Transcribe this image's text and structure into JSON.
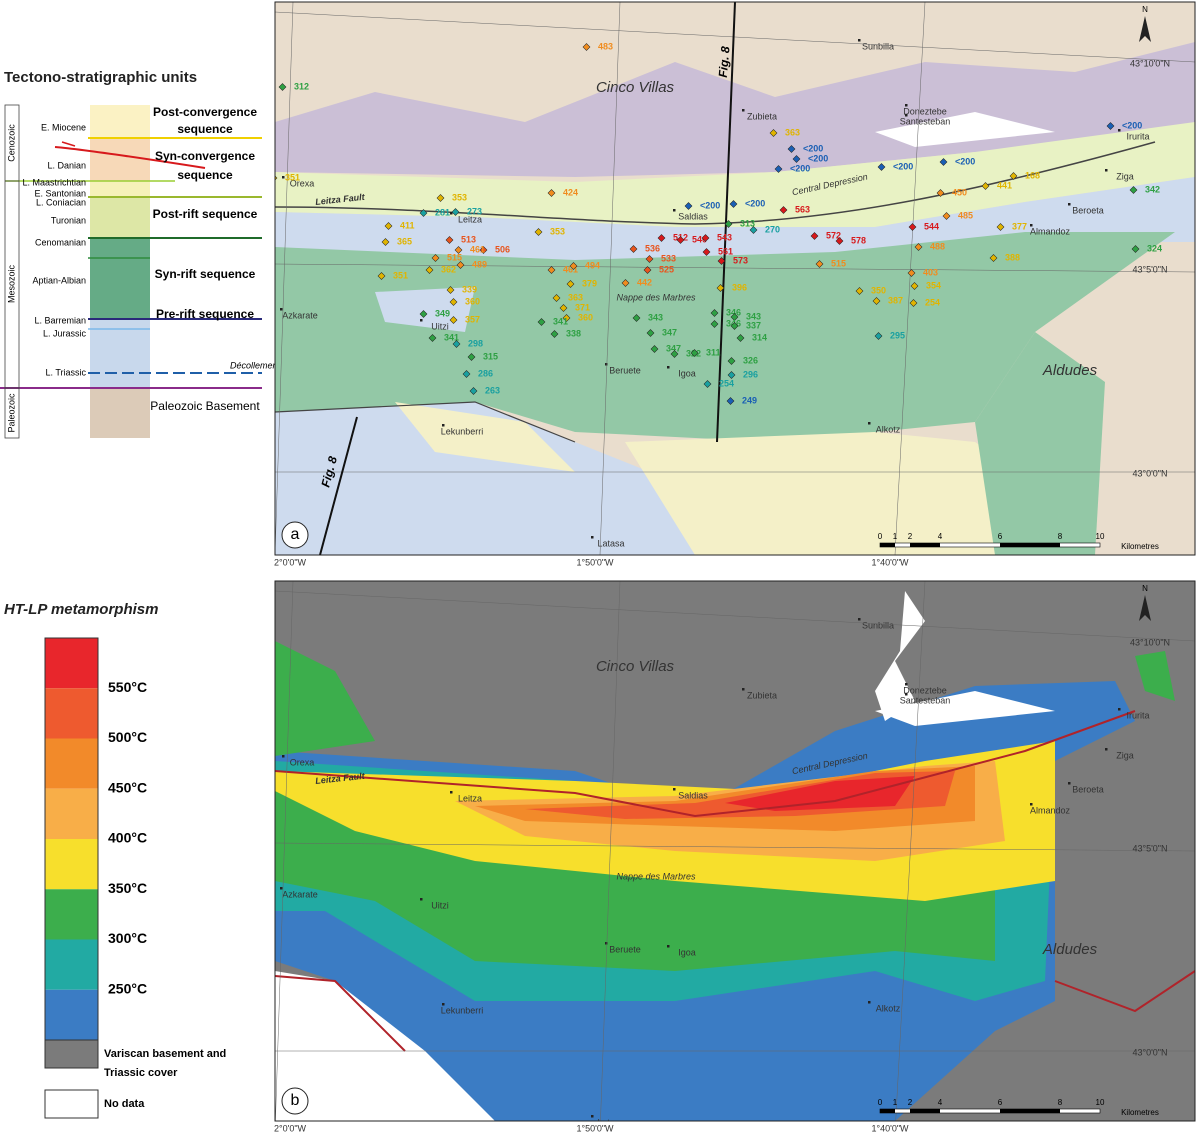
{
  "legend_a": {
    "title": "Tectono-stratigraphic units",
    "eras": [
      "Cenozoic",
      "Mesozoic",
      "Paleozoic"
    ],
    "ages": [
      "E. Miocene",
      "L. Danian",
      "L. Maastrichtian",
      "E. Santonian",
      "L. Coniacian",
      "Turonian",
      "Cenomanian",
      "Aptian-Albian",
      "L. Barremian",
      "L. Jurassic",
      "L. Triassic"
    ],
    "sequences": [
      [
        "Post-convergence",
        "sequence"
      ],
      [
        "Syn-convergence",
        "sequence"
      ],
      [
        "Post-rift sequence"
      ],
      [
        "Syn-rift sequence"
      ],
      [
        "Pre-rift sequence"
      ],
      [
        "Paleozoic Basement"
      ]
    ],
    "decollement": "Décollement"
  },
  "legend_b": {
    "title": "HT-LP metamorphism",
    "temperatures": [
      "550°C",
      "500°C",
      "450°C",
      "400°C",
      "350°C",
      "300°C",
      "250°C"
    ],
    "colors": [
      "#e8262c",
      "#ee5a2f",
      "#f28a2a",
      "#f8ae48",
      "#f7df2c",
      "#3cae4c",
      "#22aaa3",
      "#3b7cc4"
    ],
    "basement": [
      "Variscan basement and",
      "Triassic cover"
    ],
    "basement_color": "#7b7b7b",
    "nodata": "No data"
  },
  "map_a": {
    "panel": "a",
    "north": "N",
    "section": [
      "Fig. 8",
      "Fig. 8"
    ],
    "places": [
      "Sunbilla",
      "Cinco Villas",
      "Zubieta",
      "Doneztebe",
      "Santesteban",
      "Irurita",
      "Orexa",
      "Leitza Fault",
      "Leitza",
      "Saldias",
      "Central Depression",
      "Ziga",
      "Beroeta",
      "Almandoz",
      "Nappe des Marbres",
      "Azkarate",
      "Uitzi",
      "Beruete",
      "Igoa",
      "Aldudes",
      "Lekunberri",
      "Alkotz",
      "Latasa"
    ],
    "samples": [
      {
        "label": "483",
        "color": "#f08c1e"
      },
      {
        "label": "312",
        "color": "#2ea043"
      },
      {
        "label": "363",
        "color": "#e0b400"
      },
      {
        "label": "<200",
        "color": "#1a5fb4"
      },
      {
        "label": "<200",
        "color": "#1a5fb4"
      },
      {
        "label": "<200",
        "color": "#1a5fb4"
      },
      {
        "label": "<200",
        "color": "#1a5fb4"
      },
      {
        "label": "<200",
        "color": "#1a5fb4"
      },
      {
        "label": "<200",
        "color": "#1a5fb4"
      },
      {
        "label": "<200",
        "color": "#1a5fb4"
      },
      {
        "label": "<200",
        "color": "#1a5fb4"
      },
      {
        "label": "351",
        "color": "#e0b400"
      },
      {
        "label": "424",
        "color": "#f08c1e"
      },
      {
        "label": "353",
        "color": "#e0b400"
      },
      {
        "label": "281",
        "color": "#1aa0a0"
      },
      {
        "label": "273",
        "color": "#1aa0a0"
      },
      {
        "label": "450",
        "color": "#f08c1e"
      },
      {
        "label": "441",
        "color": "#e0b400"
      },
      {
        "label": "168",
        "color": "#e0b400"
      },
      {
        "label": "342",
        "color": "#2ea043"
      },
      {
        "label": "563",
        "color": "#d7191c"
      },
      {
        "label": "485",
        "color": "#f08c1e"
      },
      {
        "label": "544",
        "color": "#d7191c"
      },
      {
        "label": "572",
        "color": "#d7191c"
      },
      {
        "label": "578",
        "color": "#d7191c"
      },
      {
        "label": "313",
        "color": "#2ea043"
      },
      {
        "label": "270",
        "color": "#1aa0a0"
      },
      {
        "label": "411",
        "color": "#e0b400"
      },
      {
        "label": "353",
        "color": "#e0b400"
      },
      {
        "label": "365",
        "color": "#e0b400"
      },
      {
        "label": "513",
        "color": "#e8541d"
      },
      {
        "label": "506",
        "color": "#e8541d"
      },
      {
        "label": "536",
        "color": "#e8541d"
      },
      {
        "label": "512",
        "color": "#d7191c"
      },
      {
        "label": "540",
        "color": "#d7191c"
      },
      {
        "label": "543",
        "color": "#d7191c"
      },
      {
        "label": "561",
        "color": "#d7191c"
      },
      {
        "label": "573",
        "color": "#d7191c"
      },
      {
        "label": "533",
        "color": "#e8541d"
      },
      {
        "label": "525",
        "color": "#e8541d"
      },
      {
        "label": "461",
        "color": "#f08c1e"
      },
      {
        "label": "515",
        "color": "#f08c1e"
      },
      {
        "label": "489",
        "color": "#f08c1e"
      },
      {
        "label": "362",
        "color": "#e0b400"
      },
      {
        "label": "488",
        "color": "#f08c1e"
      },
      {
        "label": "377",
        "color": "#e0b400"
      },
      {
        "label": "388",
        "color": "#e0b400"
      },
      {
        "label": "324",
        "color": "#2ea043"
      },
      {
        "label": "461",
        "color": "#f08c1e"
      },
      {
        "label": "494",
        "color": "#f08c1e"
      },
      {
        "label": "442",
        "color": "#f08c1e"
      },
      {
        "label": "515",
        "color": "#f08c1e"
      },
      {
        "label": "351",
        "color": "#e0b400"
      },
      {
        "label": "379",
        "color": "#e0b400"
      },
      {
        "label": "403",
        "color": "#f08c1e"
      },
      {
        "label": "354",
        "color": "#e0b400"
      },
      {
        "label": "254",
        "color": "#e0b400"
      },
      {
        "label": "339",
        "color": "#e0b400"
      },
      {
        "label": "360",
        "color": "#e0b400"
      },
      {
        "label": "357",
        "color": "#e0b400"
      },
      {
        "label": "363",
        "color": "#e0b400"
      },
      {
        "label": "371",
        "color": "#e0b400"
      },
      {
        "label": "360",
        "color": "#e0b400"
      },
      {
        "label": "349",
        "color": "#2ea043"
      },
      {
        "label": "341",
        "color": "#2ea043"
      },
      {
        "label": "338",
        "color": "#2ea043"
      },
      {
        "label": "343",
        "color": "#2ea043"
      },
      {
        "label": "396",
        "color": "#e0b400"
      },
      {
        "label": "350",
        "color": "#e0b400"
      },
      {
        "label": "387",
        "color": "#e0b400"
      },
      {
        "label": "346",
        "color": "#2ea043"
      },
      {
        "label": "343",
        "color": "#2ea043"
      },
      {
        "label": "346",
        "color": "#2ea043"
      },
      {
        "label": "337",
        "color": "#2ea043"
      },
      {
        "label": "314",
        "color": "#2ea043"
      },
      {
        "label": "341",
        "color": "#2ea043"
      },
      {
        "label": "298",
        "color": "#1aa0a0"
      },
      {
        "label": "315",
        "color": "#2ea043"
      },
      {
        "label": "347",
        "color": "#2ea043"
      },
      {
        "label": "347",
        "color": "#2ea043"
      },
      {
        "label": "322",
        "color": "#2ea043"
      },
      {
        "label": "311",
        "color": "#2ea043"
      },
      {
        "label": "295",
        "color": "#1aa0a0"
      },
      {
        "label": "326",
        "color": "#2ea043"
      },
      {
        "label": "296",
        "color": "#1aa0a0"
      },
      {
        "label": "286",
        "color": "#1aa0a0"
      },
      {
        "label": "254",
        "color": "#1aa0a0"
      },
      {
        "label": "263",
        "color": "#1aa0a0"
      },
      {
        "label": "249",
        "color": "#1a5fb4"
      }
    ],
    "longitudes": [
      "2°0'0\"W",
      "1°50'0\"W",
      "1°40'0\"W"
    ],
    "latitudes": [
      "43°10'0\"N",
      "43°5'0\"N",
      "43°0'0\"N"
    ],
    "scale": [
      "0",
      "1",
      "2",
      "4",
      "6",
      "8",
      "10"
    ],
    "scale_unit": "Kilometres"
  },
  "map_b": {
    "panel": "b",
    "north": "N",
    "places": [
      "Sunbilla",
      "Cinco Villas",
      "Zubieta",
      "Doneztebe",
      "Santesteban",
      "Irurita",
      "Orexa",
      "Leitza Fault",
      "Leitza",
      "Saldias",
      "Central Depression",
      "Ziga",
      "Beroeta",
      "Almandoz",
      "Nappe des Marbres",
      "Azkarate",
      "Uitzi",
      "Beruete",
      "Igoa",
      "Aldudes",
      "Lekunberri",
      "Alkotz",
      "Latasa"
    ],
    "longitudes": [
      "2°0'0\"W",
      "1°50'0\"W",
      "1°40'0\"W"
    ],
    "latitudes": [
      "43°10'0\"N",
      "43°5'0\"N",
      "43°0'0\"N"
    ],
    "scale": [
      "0",
      "1",
      "2",
      "4",
      "6",
      "8",
      "10"
    ],
    "scale_unit": "Kilometres"
  }
}
